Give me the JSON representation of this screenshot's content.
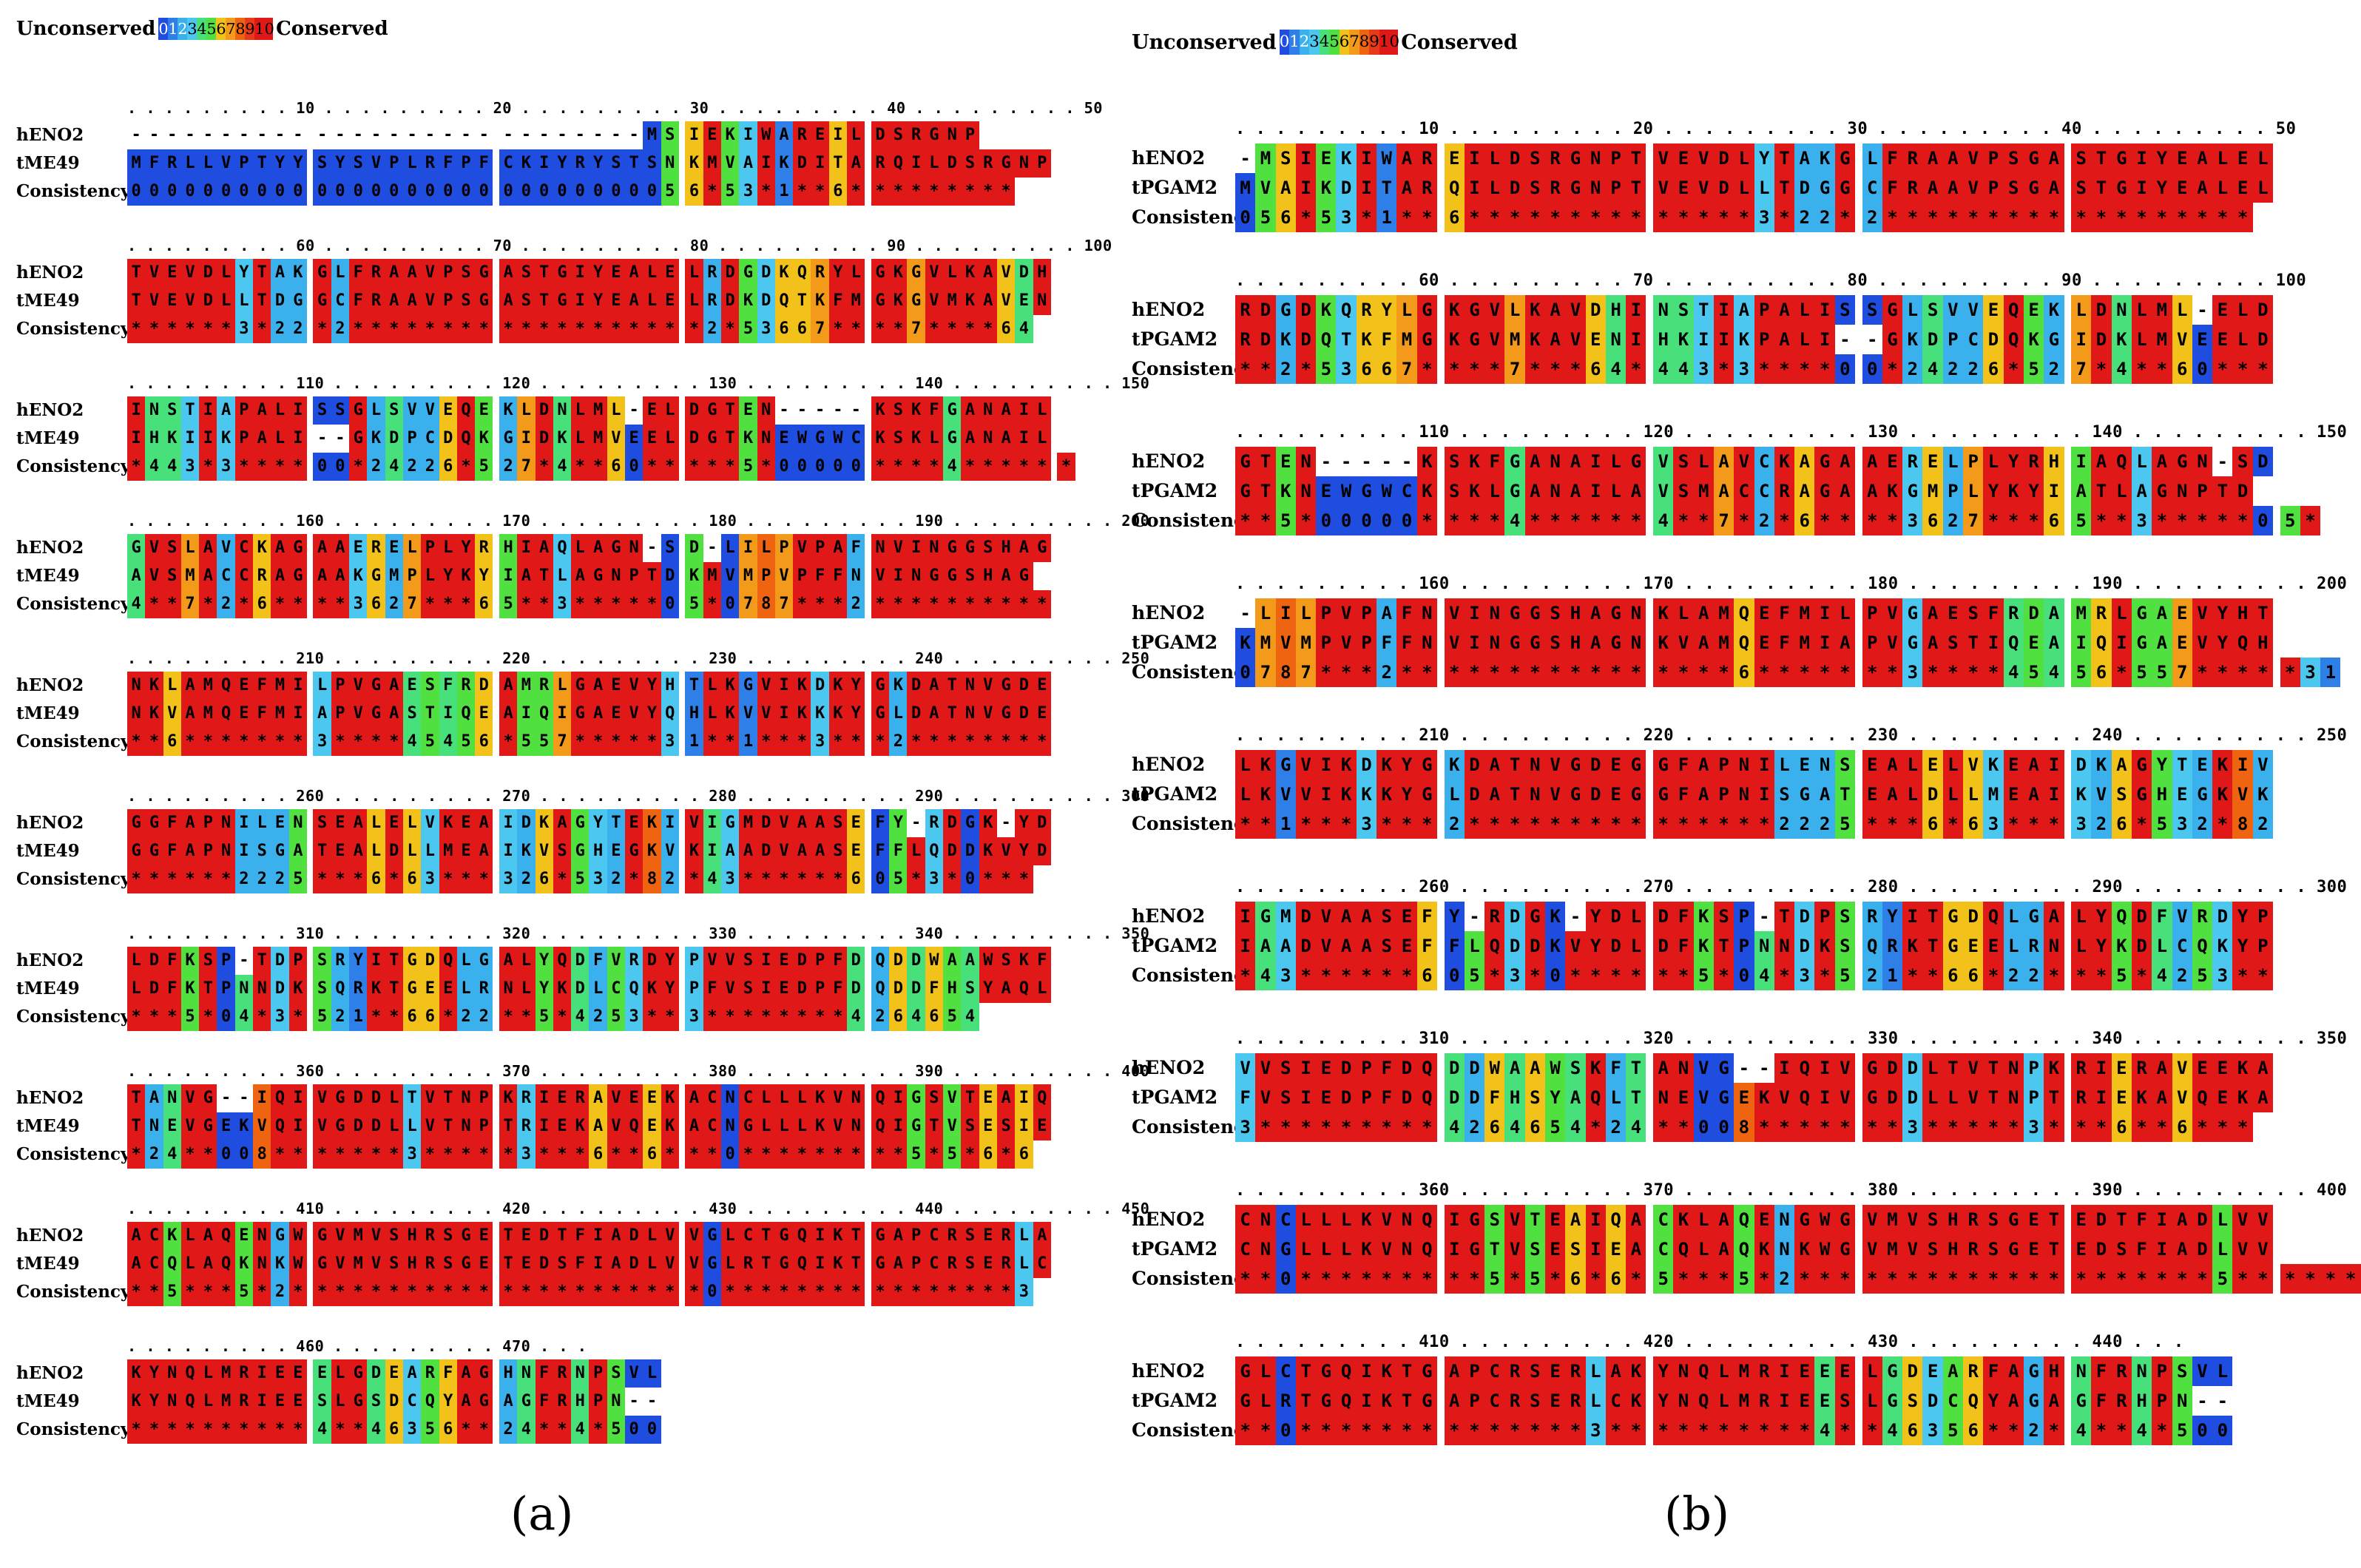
{
  "legend": {
    "left_label": "Unconserved",
    "right_label": "Conserved",
    "scale": [
      "0",
      "1",
      "2",
      "3",
      "4",
      "5",
      "6",
      "7",
      "8",
      "9",
      "10"
    ]
  },
  "colors": {
    "c0": "#1e4de0",
    "c1": "#2f7fe8",
    "c2": "#3ab0ec",
    "c3": "#4cc8f0",
    "c4": "#48e07a",
    "c5": "#50e040",
    "c6": "#f2c21a",
    "c7": "#f39a1a",
    "c8": "#ee6410",
    "c9": "#e83a18",
    "c10": "#e01818",
    "gap": "#ffffff"
  },
  "panels": [
    {
      "id": "a",
      "label": "(a)",
      "label_letter": "a",
      "row_names": [
        "hENO2",
        "tME49",
        "Consistency"
      ],
      "blocks": [
        {
          "ruler": ". . . . . . . . . 10 . . . . . . . . . 20 . . . . . . . . . 30 . . . . . . . . . 40 . . . . . . . . . 50",
          "seq1": "----------------------------MSIEKIWAREILDSRGNP",
          "seq2": "MFRLLVPTYYSYSVPLRFPFCKIYRYSTSNKMVAIKDITARQILDSRGNP",
          "cons": "0000000000000000000000000000056*53*1**6*********"
        },
        {
          "ruler": ". . . . . . . . . 60 . . . . . . . . . 70 . . . . . . . . . 80 . . . . . . . . . 90 . . . . . . . . . 100",
          "seq1": "TVEVDLYTAKGLFRAAVPSGASTGIYEALELRDGDKQRYLGKGVLKAVDH",
          "seq2": "TVEVDLLTDGGCFRAAVPSGASTGIYEALELRDKDQTKFMGKGVMKAVEN",
          "cons": "******3*22*2*******************2*53667****7****64"
        },
        {
          "ruler": ". . . . . . . . . 110 . . . . . . . . . 120 . . . . . . . . . 130 . . . . . . . . . 140 . . . . . . . . . 150",
          "seq1": "INSTIAPALISSGLSVVEQEKLDNLML-ELDGTEN-----KSKFGANAIL",
          "seq2": "IHKIIKPALI--GKDPCDQKGIDKLMVEELDGTKNEWGWCKSKLGANAIL",
          "cons": "*443*3****00*24226*527*4**60*****5*00000****4******"
        },
        {
          "ruler": ". . . . . . . . . 160 . . . . . . . . . 170 . . . . . . . . . 180 . . . . . . . . . 190 . . . . . . . . . 200",
          "seq1": "GVSLAVCKAGAAERELPLYRHIAQLAGN-SD-LILPVPAFNVINGGSHAG",
          "seq2": "AVSMACCRAGAAKGMPLYKYIATLAGNPTDKMVMPVPFFNVINGGSHAG",
          "cons": "4**7*2*6****3627***65**3*****05*0787***2**********"
        },
        {
          "ruler": ". . . . . . . . . 210 . . . . . . . . . 220 . . . . . . . . . 230 . . . . . . . . . 240 . . . . . . . . . 250",
          "seq1": "NKLAMQEFMILPVGAESFRDAMRLGAEVYHTLKGVIKDKYGKDATNVGDE",
          "seq2": "NKVAMQEFMIAPVGASTIQEAIQIGAEVYQHLKVVIKKKYGLDATNVGDE",
          "cons": "**6*******3****45456*557*****31**1***3***2********"
        },
        {
          "ruler": ". . . . . . . . . 260 . . . . . . . . . 270 . . . . . . . . . 280 . . . . . . . . . 290 . . . . . . . . . 300",
          "seq1": "GGFAPNILENSEALELVKEAIDKAGYTEKIVIGMDVAASEFY-RDGK-YD",
          "seq2": "GGFAPNISGATEALDLLMEAIKVSGHEGKVKIAADVAASEFFLQDDKVYD",
          "cons": "******2225***6*63***326*532*82*43******605*3*0***"
        },
        {
          "ruler": ". . . . . . . . . 310 . . . . . . . . . 320 . . . . . . . . . 330 . . . . . . . . . 340 . . . . . . . . . 350",
          "seq1": "LDFKSP-TDPSRYITGDQLGALYQDFVRDYPVVSIEDPFDQDDWAAWSKF",
          "seq2": "LDFKTPNNDKSQRKTGEELRNLYKDLCQKYPFVSIEDPFDQDDFHSYAQL",
          "cons": "***5*04*3*521**66*22**5*4253**3********4264654"
        },
        {
          "ruler": ". . . . . . . . . 360 . . . . . . . . . 370 . . . . . . . . . 380 . . . . . . . . . 390 . . . . . . . . . 400",
          "seq1": "TANVG--IQIVGDDLTVTNPKRIERAVEEKACNCLLLKVNQIGSVTEAIQ",
          "seq2": "TNEVGEKVQIVGDDLLVTNPTRIEKAVQEKACNGLLLKVNQIGTVSESIE",
          "cons": "*24**008*******3*****3***6**6***0*********5*5*6*6"
        },
        {
          "ruler": ". . . . . . . . . 410 . . . . . . . . . 420 . . . . . . . . . 430 . . . . . . . . . 440 . . . . . . . . . 450",
          "seq1": "ACKLAQENGWGVMVSHRSGETEDTFIADLVVGLCTGQIKTGAPCRSERLA",
          "seq2": "ACQLAQKNKWGVMVSHRSGETEDSFIADLVVGLRTGQIKTGAPCRSERLC",
          "cons": "**5***5*2**********************0****************3"
        },
        {
          "ruler": ". . . . . . . . . 460 . . . . . . . . . 470 . . .",
          "seq1": "KYNQLMRIEEELGDEARFAGHNFRNPSVL",
          "seq2": "KYNQLMRIEESLGSDCQYAGAGFRHPN--",
          "cons": "**********4**46356**24**4*500"
        }
      ]
    },
    {
      "id": "b",
      "label": "(b)",
      "label_letter": "b",
      "row_names": [
        "hENO2",
        "tPGAM2",
        "Consistency"
      ],
      "blocks": [
        {
          "ruler": ". . . . . . . . . 10 . . . . . . . . . 20 . . . . . . . . . 30 . . . . . . . . . 40 . . . . . . . . . 50",
          "seq1": "-MSIEKIWAREILDSRGNPTVEVDLYTAKGLFRAAVPSGASTGIYEALEL",
          "seq2": "MVAIKDITARQILDSRGNPTVEVDLLTDGGCFRAAVPSGASTGIYEALEL",
          "cons": "056*53*1**6**************3*22*2******************"
        },
        {
          "ruler": ". . . . . . . . . 60 . . . . . . . . . 70 . . . . . . . . . 80 . . . . . . . . . 90 . . . . . . . . . 100",
          "seq1": "RDGDKQRYLGKGVLKAVDHINSTIAPALISSGLSVVEQEKLDNLML-ELD",
          "seq2": "RDKDQTKFMGKGVMKAVENIHKIIKPALI--GKDPCDQKGIDKLMVEELD",
          "cons": "**2*53667****7***64*443*3****00*24226*527*4**60***"
        },
        {
          "ruler": ". . . . . . . . . 110 . . . . . . . . . 120 . . . . . . . . . 130 . . . . . . . . . 140 . . . . . . . . . 150",
          "seq1": "GTEN-----KSKFGANAILGVSLAVCKAGAAERELPLYRHIAQLAGN-SD",
          "seq2": "GTKNEWGWCKSKLGANAILAVSMACCRAGAAKGMPLYKYIATLAGNPTD",
          "cons": "**5*00000****4******4**7*2*6****3627***65**3*****05*"
        },
        {
          "ruler": ". . . . . . . . . 160 . . . . . . . . . 170 . . . . . . . . . 180 . . . . . . . . . 190 . . . . . . . . . 200",
          "seq1": "-LILPVPAFNVINGGSHAGNKLAMQEFMILPVGAESFRDAMRLGAEVYHT",
          "seq2": "KMVMPVPFFNVINGGSHAGNKVAMQEFMIAPVGASTIQEAIQIGAEVYQH",
          "cons": "0787***2****************6*******3****45456*557*****31"
        },
        {
          "ruler": ". . . . . . . . . 210 . . . . . . . . . 220 . . . . . . . . . 230 . . . . . . . . . 240 . . . . . . . . . 250",
          "seq1": "LKGVIKDKYGKDATNVGDEGGFAPNILENSEALELVKEAIDKAGYTEKIV",
          "seq2": "LKVVIKKKYGLDATNVGDEGGFAPNISGATEALDLLMEAIKVSGHEGKVK",
          "cons": "**1***3***2***************2225***6*63***326*532*82"
        },
        {
          "ruler": ". . . . . . . . . 260 . . . . . . . . . 270 . . . . . . . . . 280 . . . . . . . . . 290 . . . . . . . . . 300",
          "seq1": "IGMDVAASEFY-RDGK-YDLDFKSP-TDPSRYITGDQLGALYQDFVRDYP",
          "seq2": "IAADVAASEFFLQDDKVYDLDFKTPNNDKSQRKTGEELRNLYKDLCQKYP",
          "cons": "*43******605*3*0******5*04*3*521**66*22***5*4253**"
        },
        {
          "ruler": ". . . . . . . . . 310 . . . . . . . . . 320 . . . . . . . . . 330 . . . . . . . . . 340 . . . . . . . . . 350",
          "seq1": "VVSIEDPFDQDDWAAWSKFTANVG--IQIVGDDLTVTNPKRIERAVEEKA",
          "seq2": "FVSIEDPFDQDDFHSYAQLTNEVGEKVQIVGDDLLVTNPTRIEKAVQEKA",
          "cons": "3*********4264654*24**008*******3*****3***6**6***"
        },
        {
          "ruler": ". . . . . . . . . 360 . . . . . . . . . 370 . . . . . . . . . 380 . . . . . . . . . 390 . . . . . . . . . 400",
          "seq1": "CNCLLLKVNQIGSVTEAIQACKLAQENGWGVMVSHRSGETEDTFIADLVV",
          "seq2": "CNGLLLKVNQIGTVSESIEACQLAQKNKWGVMVSHRSGETEDSFIADLVV",
          "cons": "**0*********5*5*6*6*5***5*2********************5******"
        },
        {
          "ruler": ". . . . . . . . . 410 . . . . . . . . . 420 . . . . . . . . . 430 . . . . . . . . . 440 . . .",
          "seq1": "GLCTGQIKTGAPCRSERLAKYNQLMRIEEELGDEARFAGHNFRNPSVL",
          "seq2": "GLRTGQIKTGAPCRSERLCKYNQLMRIEESLGSDCQYAGAGFRHPN--",
          "cons": "**0**************3**********4**46356**2*4**4*500"
        }
      ]
    }
  ]
}
